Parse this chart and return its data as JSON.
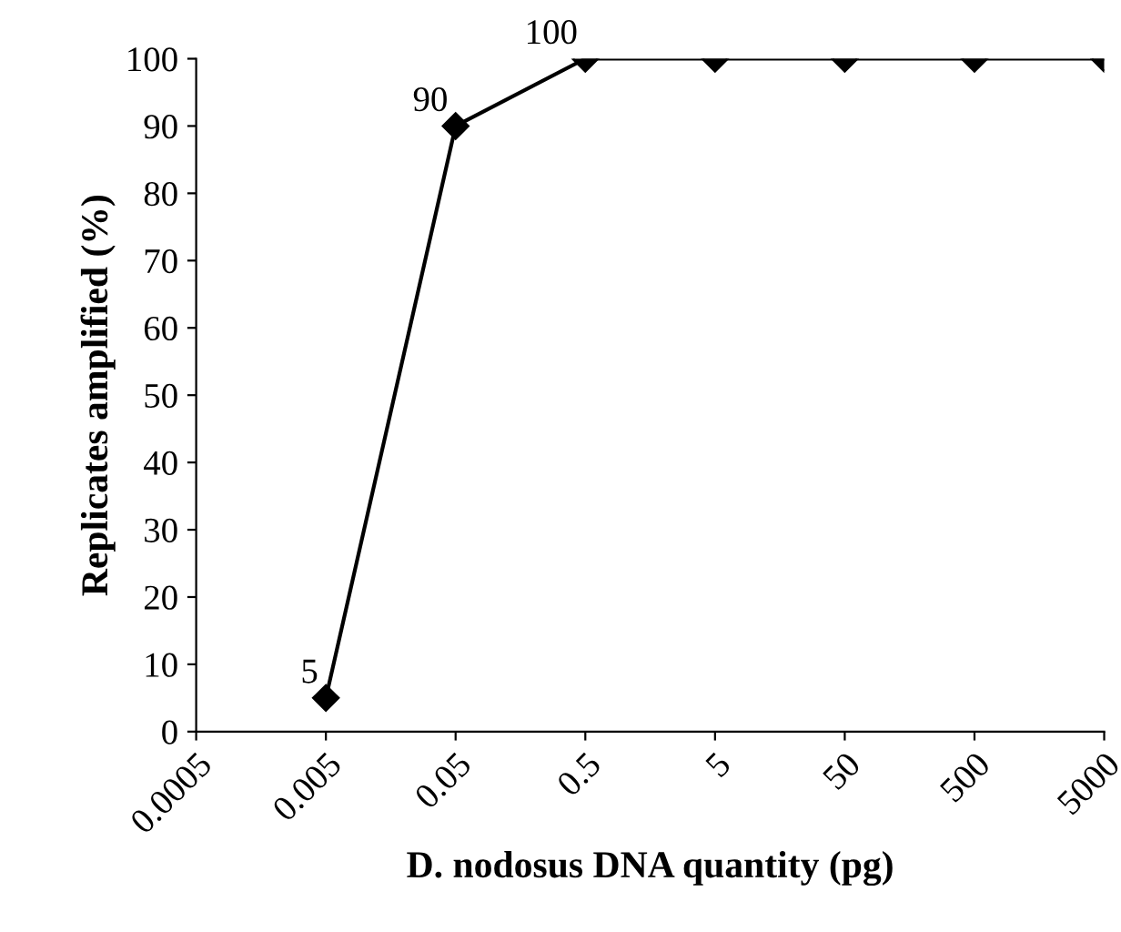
{
  "chart_data": {
    "type": "line",
    "x": [
      0.005,
      0.05,
      0.5,
      5,
      50,
      500,
      5000
    ],
    "series": [
      {
        "color": "#000000",
        "values": [
          5,
          90,
          100,
          100,
          100,
          100,
          100
        ],
        "value_labels": [
          "5",
          "90",
          "100",
          null,
          null,
          null,
          null
        ]
      }
    ],
    "xlabel": "D. nodosus DNA quantity (pg)",
    "ylabel": "Replicates amplified (%)",
    "log": "x",
    "xlim": [
      0.0005,
      5000
    ],
    "xticks": [
      0.0005,
      0.005,
      0.05,
      0.5,
      5,
      50,
      500,
      5000
    ],
    "ylim": [
      0,
      100
    ],
    "yticks": [
      0,
      10,
      20,
      30,
      40,
      50,
      60,
      70,
      80,
      90,
      100
    ],
    "marker": "diamond",
    "line_style": "solid",
    "grid": false,
    "legend": false
  }
}
